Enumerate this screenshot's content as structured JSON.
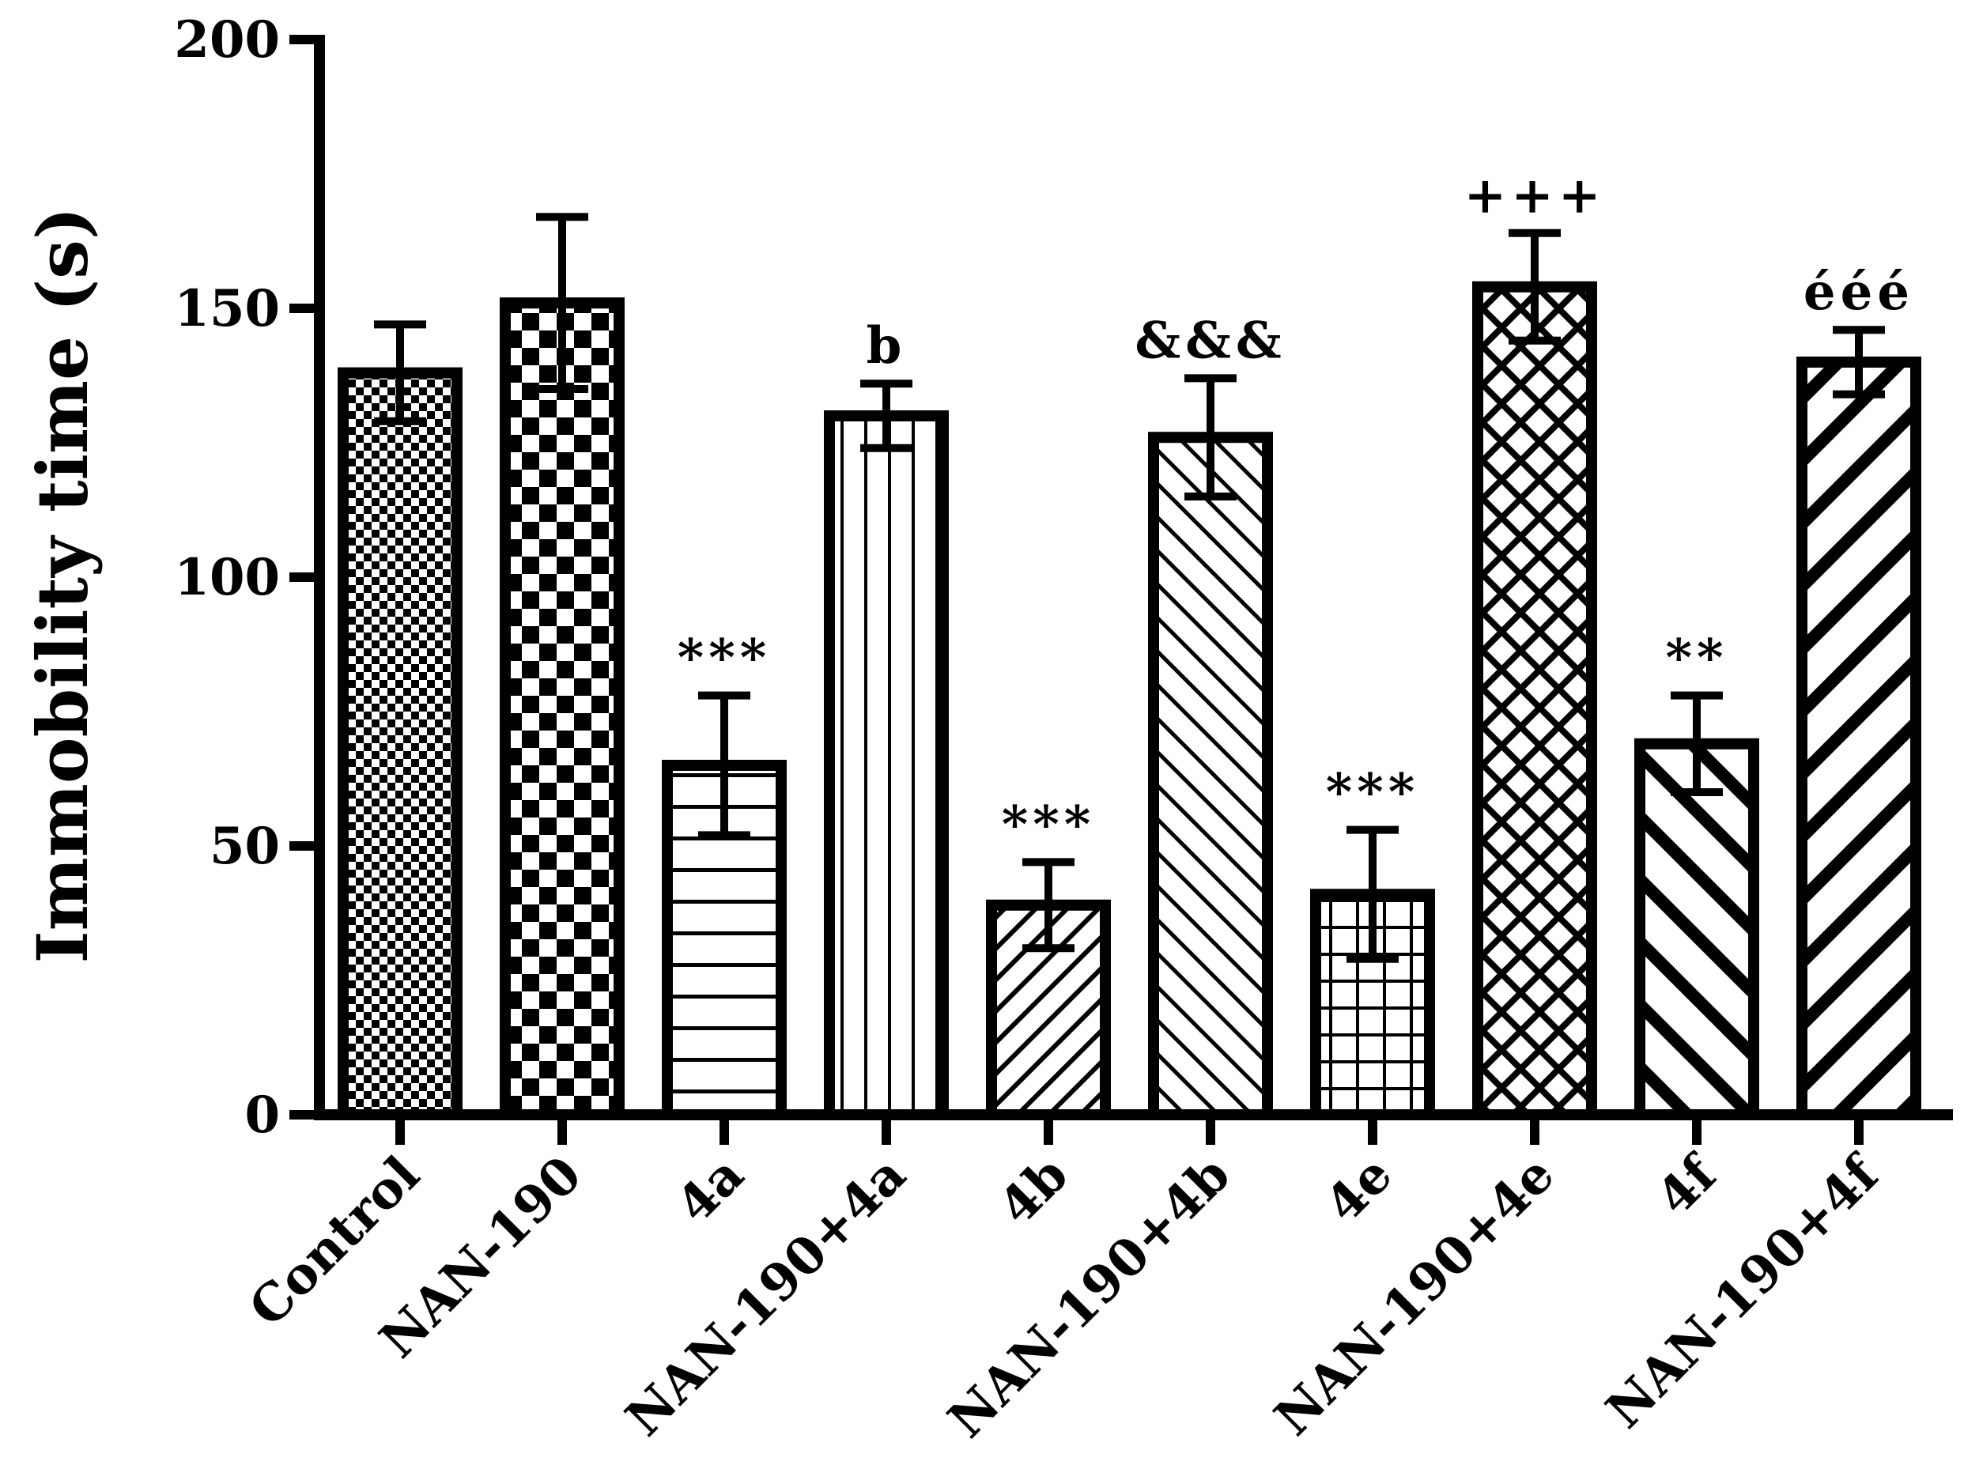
{
  "chart_data": {
    "type": "bar",
    "title": "",
    "xlabel": "",
    "ylabel": "Immobility time (s)",
    "ylim": [
      0,
      200
    ],
    "yticks": [
      0,
      50,
      100,
      150,
      200
    ],
    "grid": false,
    "categories": [
      "Control",
      "NAN-190",
      "4a",
      "NAN-190+4a",
      "4b",
      "NAN-190+4b",
      "4e",
      "NAN-190+4e",
      "4f",
      "NAN-190+4f"
    ],
    "values": [
      138,
      151,
      65,
      130,
      39,
      126,
      41,
      154,
      69,
      140
    ],
    "error": [
      9,
      16,
      13,
      6,
      8,
      11,
      12,
      10,
      9,
      6
    ],
    "annotations": [
      "",
      "",
      "***",
      "b",
      "***",
      "&&&",
      "***",
      "+++",
      "**",
      "ééé"
    ],
    "patterns": [
      "fine-checker",
      "checker",
      "horizontal",
      "vertical",
      "diag-fine",
      "diag-back",
      "grid",
      "diamond",
      "diag-wide-back",
      "diag-wide"
    ]
  }
}
